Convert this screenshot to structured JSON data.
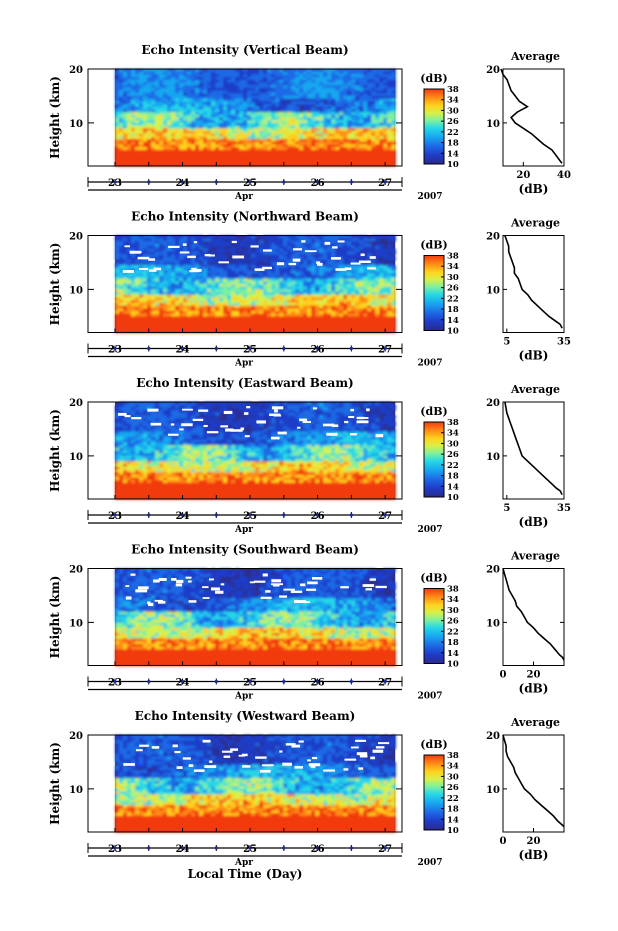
{
  "figure": {
    "xlabel": "Local Time (Day)",
    "month_label": "Apr",
    "year_label": "2007",
    "colorbar_unit": "(dB)",
    "avg_title": "Average",
    "avg_xlabel": "(dB)",
    "ylabel": "Height (km)"
  },
  "chart_data": [
    {
      "type": "heatmap",
      "title": "Echo Intensity (Vertical Beam)",
      "ylabel": "Height (km)",
      "ylim": [
        2,
        20
      ],
      "yticks": [
        10,
        20
      ],
      "xlabel": "Apr",
      "xlim": [
        22.6,
        27.25
      ],
      "xticks": [
        23,
        24,
        25,
        26,
        27
      ],
      "data_x_range": [
        23.0,
        27.15
      ],
      "colorbar": {
        "unit": "(dB)",
        "min": 10,
        "max": 38,
        "ticks": [
          10,
          14,
          18,
          22,
          26,
          30,
          34,
          38
        ]
      },
      "average_profile": {
        "type": "line",
        "title": "Average",
        "xlabel": "(dB)",
        "xlim": [
          10,
          40
        ],
        "xticks": [
          20,
          40
        ],
        "ylim": [
          2,
          20
        ],
        "yticks": [
          10,
          20
        ],
        "points": [
          [
            9,
            20
          ],
          [
            10,
            19
          ],
          [
            12,
            18
          ],
          [
            13,
            17
          ],
          [
            14,
            16
          ],
          [
            16,
            15
          ],
          [
            18,
            14
          ],
          [
            22,
            13
          ],
          [
            17,
            12
          ],
          [
            14,
            11
          ],
          [
            16,
            10
          ],
          [
            20,
            9
          ],
          [
            24,
            8
          ],
          [
            27,
            7
          ],
          [
            30,
            6
          ],
          [
            34,
            5
          ],
          [
            36,
            4
          ],
          [
            38,
            3
          ],
          [
            39,
            2.5
          ]
        ]
      }
    },
    {
      "type": "heatmap",
      "title": "Echo Intensity (Northward Beam)",
      "ylabel": "Height (km)",
      "ylim": [
        2,
        20
      ],
      "yticks": [
        10,
        20
      ],
      "xlabel": "Apr",
      "xlim": [
        22.6,
        27.25
      ],
      "xticks": [
        23,
        24,
        25,
        26,
        27
      ],
      "data_x_range": [
        23.0,
        27.15
      ],
      "colorbar": {
        "unit": "(dB)",
        "min": 10,
        "max": 38,
        "ticks": [
          10,
          14,
          18,
          22,
          26,
          30,
          34,
          38
        ]
      },
      "average_profile": {
        "type": "line",
        "title": "Average",
        "xlabel": "(dB)",
        "xlim": [
          3,
          35
        ],
        "xticks": [
          5,
          35
        ],
        "ylim": [
          2,
          20
        ],
        "yticks": [
          10,
          20
        ],
        "points": [
          [
            4,
            20
          ],
          [
            5,
            19
          ],
          [
            6,
            18
          ],
          [
            6,
            17
          ],
          [
            7,
            16
          ],
          [
            8,
            15
          ],
          [
            9,
            14
          ],
          [
            9,
            13
          ],
          [
            11,
            12
          ],
          [
            12,
            11
          ],
          [
            13,
            10
          ],
          [
            16,
            9
          ],
          [
            18,
            8
          ],
          [
            21,
            7
          ],
          [
            24,
            6
          ],
          [
            27,
            5
          ],
          [
            31,
            4
          ],
          [
            33,
            3.5
          ],
          [
            34,
            2.8
          ]
        ]
      }
    },
    {
      "type": "heatmap",
      "title": "Echo Intensity (Eastward Beam)",
      "ylabel": "Height (km)",
      "ylim": [
        2,
        20
      ],
      "yticks": [
        10,
        20
      ],
      "xlabel": "Apr",
      "xlim": [
        22.6,
        27.25
      ],
      "xticks": [
        23,
        24,
        25,
        26,
        27
      ],
      "data_x_range": [
        23.0,
        27.15
      ],
      "colorbar": {
        "unit": "(dB)",
        "min": 10,
        "max": 38,
        "ticks": [
          10,
          14,
          18,
          22,
          26,
          30,
          34,
          38
        ]
      },
      "average_profile": {
        "type": "line",
        "title": "Average",
        "xlabel": "(dB)",
        "xlim": [
          3,
          35
        ],
        "xticks": [
          5,
          35
        ],
        "ylim": [
          2,
          20
        ],
        "yticks": [
          10,
          20
        ],
        "points": [
          [
            4,
            20
          ],
          [
            4.5,
            19
          ],
          [
            5,
            18
          ],
          [
            6,
            17
          ],
          [
            7,
            16
          ],
          [
            8,
            15
          ],
          [
            9,
            14
          ],
          [
            10,
            13
          ],
          [
            11,
            12
          ],
          [
            12,
            11
          ],
          [
            13,
            10
          ],
          [
            16,
            9
          ],
          [
            19,
            8
          ],
          [
            22,
            7
          ],
          [
            25,
            6
          ],
          [
            28,
            5
          ],
          [
            31,
            4
          ],
          [
            33,
            3.5
          ],
          [
            34,
            2.8
          ]
        ]
      }
    },
    {
      "type": "heatmap",
      "title": "Echo Intensity (Southward Beam)",
      "ylabel": "Height (km)",
      "ylim": [
        2,
        20
      ],
      "yticks": [
        10,
        20
      ],
      "xlabel": "Apr",
      "xlim": [
        22.6,
        27.25
      ],
      "xticks": [
        23,
        24,
        25,
        26,
        27
      ],
      "data_x_range": [
        23.0,
        27.15
      ],
      "colorbar": {
        "unit": "(dB)",
        "min": 10,
        "max": 38,
        "ticks": [
          10,
          14,
          18,
          22,
          26,
          30,
          34,
          38
        ]
      },
      "average_profile": {
        "type": "line",
        "title": "Average",
        "xlabel": "(dB)",
        "xlim": [
          0,
          40
        ],
        "xticks": [
          0,
          20
        ],
        "ylim": [
          2,
          20
        ],
        "yticks": [
          10,
          20
        ],
        "points": [
          [
            0,
            20
          ],
          [
            1,
            19
          ],
          [
            2,
            18
          ],
          [
            3,
            17
          ],
          [
            4,
            16
          ],
          [
            6,
            15
          ],
          [
            8,
            14
          ],
          [
            9,
            13
          ],
          [
            12,
            12
          ],
          [
            14,
            11
          ],
          [
            16,
            10
          ],
          [
            20,
            9
          ],
          [
            23,
            8
          ],
          [
            27,
            7
          ],
          [
            31,
            6
          ],
          [
            34,
            5
          ],
          [
            37,
            4
          ],
          [
            39,
            3.5
          ],
          [
            40,
            3
          ]
        ]
      }
    },
    {
      "type": "heatmap",
      "title": "Echo Intensity (Westward Beam)",
      "ylabel": "Height (km)",
      "ylim": [
        2,
        20
      ],
      "yticks": [
        10,
        20
      ],
      "xlabel": "Apr",
      "xlim": [
        22.6,
        27.25
      ],
      "xticks": [
        23,
        24,
        25,
        26,
        27
      ],
      "data_x_range": [
        23.0,
        27.15
      ],
      "colorbar": {
        "unit": "(dB)",
        "min": 10,
        "max": 38,
        "ticks": [
          10,
          14,
          18,
          22,
          26,
          30,
          34,
          38
        ]
      },
      "average_profile": {
        "type": "line",
        "title": "Average",
        "xlabel": "(dB)",
        "xlim": [
          0,
          40
        ],
        "xticks": [
          0,
          20
        ],
        "ylim": [
          2,
          20
        ],
        "yticks": [
          10,
          20
        ],
        "points": [
          [
            0,
            20
          ],
          [
            1,
            19
          ],
          [
            2,
            18
          ],
          [
            2,
            17
          ],
          [
            3,
            16
          ],
          [
            5,
            15
          ],
          [
            7,
            14
          ],
          [
            8,
            13
          ],
          [
            10,
            12
          ],
          [
            12,
            11
          ],
          [
            14,
            10
          ],
          [
            18,
            9
          ],
          [
            21,
            8
          ],
          [
            25,
            7
          ],
          [
            29,
            6
          ],
          [
            33,
            5
          ],
          [
            36,
            4
          ],
          [
            38,
            3.5
          ],
          [
            40,
            3
          ]
        ]
      }
    }
  ],
  "colors": {
    "colormap": [
      "#2a2a8c",
      "#1f3cc8",
      "#1e6ae6",
      "#17a7f0",
      "#27d8e6",
      "#7ff0a0",
      "#d8f048",
      "#ffd21e",
      "#ff8a16",
      "#f23a10"
    ],
    "background": "#2c2f8e",
    "axis": "#000000",
    "tick_marker": "#1a2a9a"
  }
}
